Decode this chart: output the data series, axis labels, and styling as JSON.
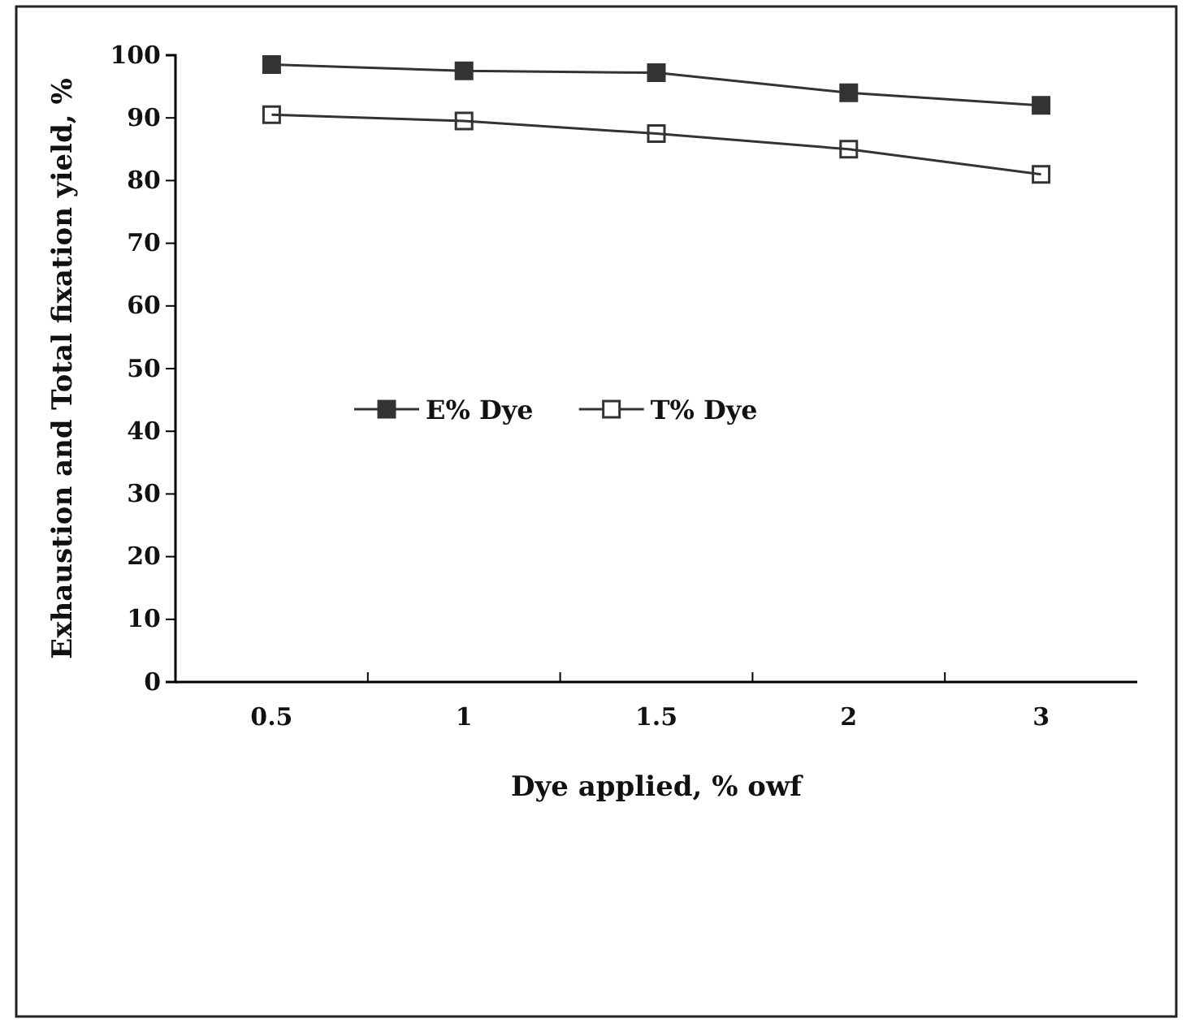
{
  "chart_data": {
    "type": "line",
    "xlabel": "Dye applied, % owf",
    "ylabel": "Exhaustion and Total fixation yield, %",
    "categories": [
      "0.5",
      "1",
      "1.5",
      "2",
      "3"
    ],
    "series": [
      {
        "name": "E% Dye",
        "color": "#333333",
        "values": [
          98.5,
          97.5,
          97.2,
          94,
          92
        ]
      },
      {
        "name": "T% Dye",
        "color": "#333333",
        "values": [
          90.5,
          89.5,
          87.5,
          85,
          81
        ]
      }
    ],
    "ylim": [
      0,
      100
    ],
    "yticks": [
      0,
      10,
      20,
      30,
      40,
      50,
      60,
      70,
      80,
      90,
      100
    ],
    "marker": "square",
    "legend": "left",
    "grid": false
  }
}
